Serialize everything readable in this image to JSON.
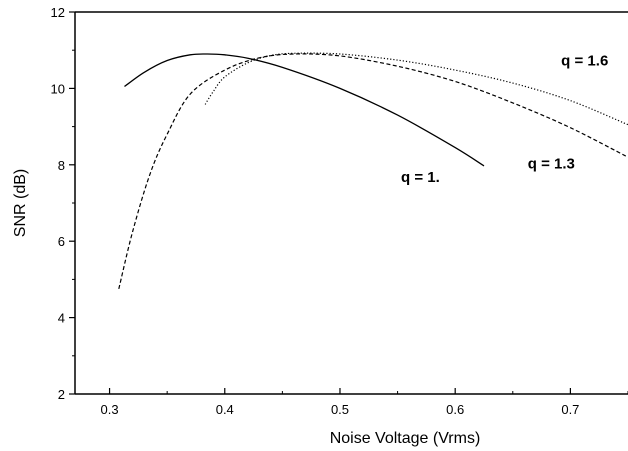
{
  "chart_data": {
    "type": "line",
    "title": "",
    "xlabel": "Noise Voltage (Vrms)",
    "ylabel": "SNR (dB)",
    "xlim": [
      0.27,
      0.75
    ],
    "ylim": [
      2,
      12
    ],
    "x_ticks": [
      0.3,
      0.4,
      0.5,
      0.6,
      0.7
    ],
    "x_tick_labels": [
      "0.3",
      "0.4",
      "0.5",
      "0.6",
      "0.7"
    ],
    "y_ticks": [
      2,
      4,
      6,
      8,
      10,
      12
    ],
    "y_tick_labels": [
      "2",
      "4",
      "6",
      "8",
      "10",
      "12"
    ],
    "grid": false,
    "series": [
      {
        "name": "q = 1.",
        "style": "solid",
        "x": [
          0.313,
          0.33,
          0.35,
          0.37,
          0.385,
          0.4,
          0.42,
          0.45,
          0.5,
          0.55,
          0.6,
          0.625
        ],
        "y": [
          10.05,
          10.42,
          10.73,
          10.88,
          10.9,
          10.88,
          10.79,
          10.55,
          10.0,
          9.3,
          8.45,
          7.97
        ]
      },
      {
        "name": "q = 1.3",
        "style": "dashed",
        "x": [
          0.308,
          0.32,
          0.335,
          0.35,
          0.37,
          0.4,
          0.43,
          0.46,
          0.5,
          0.55,
          0.6,
          0.65,
          0.7,
          0.75
        ],
        "y": [
          4.75,
          6.25,
          7.75,
          8.8,
          9.85,
          10.48,
          10.8,
          10.9,
          10.85,
          10.58,
          10.18,
          9.62,
          8.97,
          8.2
        ]
      },
      {
        "name": "q = 1.6",
        "style": "dotted",
        "x": [
          0.383,
          0.39,
          0.4,
          0.42,
          0.44,
          0.46,
          0.5,
          0.55,
          0.6,
          0.65,
          0.7,
          0.75
        ],
        "y": [
          9.58,
          9.92,
          10.3,
          10.67,
          10.86,
          10.92,
          10.9,
          10.74,
          10.48,
          10.14,
          9.68,
          9.05
        ]
      }
    ],
    "annotations": [
      {
        "text": "q = 1.6",
        "x": 0.692,
        "y": 10.6
      },
      {
        "text": "q = 1.3",
        "x": 0.663,
        "y": 7.9
      },
      {
        "text": "q = 1.",
        "x": 0.553,
        "y": 7.55
      }
    ]
  }
}
